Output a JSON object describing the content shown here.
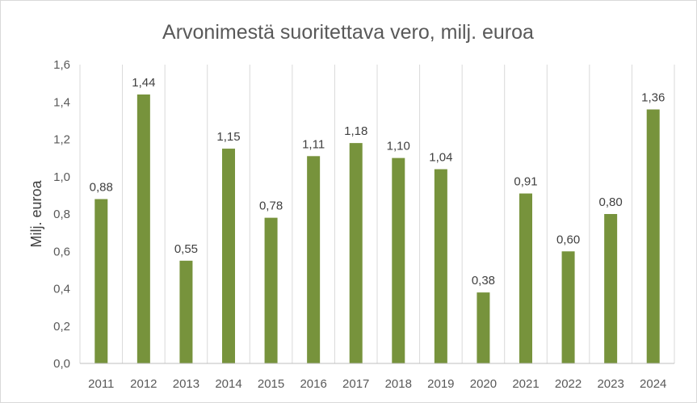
{
  "chart_data": {
    "type": "bar",
    "title": "Arvonimestä suoritettava vero, milj. euroa",
    "xlabel": "",
    "ylabel": "Milj. euroa",
    "categories": [
      "2011",
      "2012",
      "2013",
      "2014",
      "2015",
      "2016",
      "2017",
      "2018",
      "2019",
      "2020",
      "2021",
      "2022",
      "2023",
      "2024"
    ],
    "values": [
      0.88,
      1.44,
      0.55,
      1.15,
      0.78,
      1.11,
      1.18,
      1.1,
      1.04,
      0.38,
      0.91,
      0.6,
      0.8,
      1.36
    ],
    "value_labels": [
      "0,88",
      "1,44",
      "0,55",
      "1,15",
      "0,78",
      "1,11",
      "1,18",
      "1,10",
      "1,04",
      "0,38",
      "0,91",
      "0,60",
      "0,80",
      "1,36"
    ],
    "ylim": [
      0,
      1.6
    ],
    "y_ticks": [
      0,
      0.2,
      0.4,
      0.6,
      0.8,
      1.0,
      1.2,
      1.4,
      1.6
    ],
    "y_tick_labels": [
      "0,0",
      "0,2",
      "0,4",
      "0,6",
      "0,8",
      "1,0",
      "1,2",
      "1,4",
      "1,6"
    ],
    "grid": "vertical-category-lines",
    "legend": "none",
    "colors": {
      "bar": "#77933c",
      "grid": "#d9d9d9",
      "axis": "#bfbfbf"
    }
  }
}
